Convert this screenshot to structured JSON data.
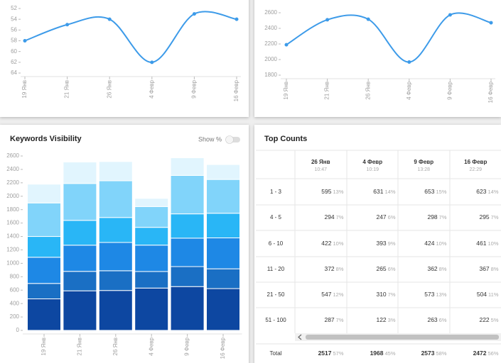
{
  "chart_data": [
    {
      "type": "line",
      "categories": [
        "19 Янв",
        "21 Янв",
        "26 Янв",
        "4 Февр",
        "9 Февр",
        "16 Февр"
      ],
      "values": [
        58,
        55,
        54,
        62,
        53,
        54
      ],
      "color": "#3d9be9",
      "ylim": [
        64,
        52
      ],
      "yticks": [
        52,
        54,
        56,
        58,
        60,
        62,
        64
      ]
    },
    {
      "type": "line",
      "categories": [
        "19 Янв",
        "21 Янв",
        "26 Янв",
        "4 Февр",
        "9 Февр",
        "16 Февр"
      ],
      "values": [
        2190,
        2510,
        2517,
        1968,
        2573,
        2472
      ],
      "color": "#3d9be9",
      "ylim": [
        1800,
        2600
      ],
      "yticks": [
        1800,
        2000,
        2200,
        2400,
        2600
      ]
    },
    {
      "type": "stacked_bar",
      "title": "Keywords Visibility",
      "toggle_label": "Show %",
      "categories": [
        "19 Янв",
        "21 Янв",
        "26 Янв",
        "4 Февр",
        "9 Февр",
        "16 Февр"
      ],
      "series": [
        {
          "color": "#0d47a1",
          "values": [
            470,
            590,
            595,
            631,
            653,
            623
          ]
        },
        {
          "color": "#1a6fc4",
          "values": [
            230,
            290,
            294,
            247,
            298,
            295
          ]
        },
        {
          "color": "#1e88e5",
          "values": [
            390,
            390,
            422,
            393,
            424,
            461
          ]
        },
        {
          "color": "#29b6f6",
          "values": [
            310,
            370,
            372,
            265,
            362,
            367
          ]
        },
        {
          "color": "#81d4fa",
          "values": [
            500,
            550,
            547,
            310,
            573,
            504
          ]
        },
        {
          "color": "#e1f5fe",
          "values": [
            280,
            320,
            287,
            122,
            263,
            222
          ]
        }
      ],
      "ylim": [
        0,
        2600
      ],
      "yticks": [
        0,
        200,
        400,
        600,
        800,
        1000,
        1200,
        1400,
        1600,
        1800,
        2000,
        2200,
        2400,
        2600
      ]
    }
  ],
  "table": {
    "title": "Top Counts",
    "columns": [
      {
        "date": "26 Янв",
        "time": "10:47"
      },
      {
        "date": "4 Февр",
        "time": "10:19"
      },
      {
        "date": "9 Февр",
        "time": "13:28"
      },
      {
        "date": "16 Февр",
        "time": "22:29"
      }
    ],
    "rows": [
      {
        "label": "1 - 3",
        "cells": [
          {
            "count": 595,
            "pct": "13%"
          },
          {
            "count": 631,
            "pct": "14%"
          },
          {
            "count": 653,
            "pct": "15%"
          },
          {
            "count": 623,
            "pct": "14%"
          }
        ]
      },
      {
        "label": "4 - 5",
        "cells": [
          {
            "count": 294,
            "pct": "7%"
          },
          {
            "count": 247,
            "pct": "6%"
          },
          {
            "count": 298,
            "pct": "7%"
          },
          {
            "count": 295,
            "pct": "7%"
          }
        ]
      },
      {
        "label": "6 - 10",
        "cells": [
          {
            "count": 422,
            "pct": "10%"
          },
          {
            "count": 393,
            "pct": "9%"
          },
          {
            "count": 424,
            "pct": "10%"
          },
          {
            "count": 461,
            "pct": "10%"
          }
        ]
      },
      {
        "label": "11 - 20",
        "cells": [
          {
            "count": 372,
            "pct": "8%"
          },
          {
            "count": 265,
            "pct": "6%"
          },
          {
            "count": 362,
            "pct": "8%"
          },
          {
            "count": 367,
            "pct": "8%"
          }
        ]
      },
      {
        "label": "21 - 50",
        "cells": [
          {
            "count": 547,
            "pct": "12%"
          },
          {
            "count": 310,
            "pct": "7%"
          },
          {
            "count": 573,
            "pct": "13%"
          },
          {
            "count": 504,
            "pct": "11%"
          }
        ]
      },
      {
        "label": "51 - 100",
        "cells": [
          {
            "count": 287,
            "pct": "7%"
          },
          {
            "count": 122,
            "pct": "3%"
          },
          {
            "count": 263,
            "pct": "6%"
          },
          {
            "count": 222,
            "pct": "5%"
          }
        ]
      }
    ],
    "total": {
      "label": "Total",
      "cells": [
        {
          "count": 2517,
          "pct": "57%"
        },
        {
          "count": 1968,
          "pct": "45%"
        },
        {
          "count": 2573,
          "pct": "58%"
        },
        {
          "count": 2472,
          "pct": "56%"
        }
      ]
    }
  }
}
